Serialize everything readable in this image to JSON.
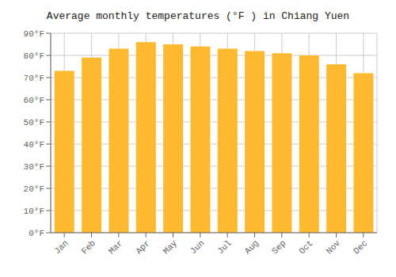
{
  "chart_data": {
    "type": "bar",
    "title": "Average monthly temperatures (°F ) in Chiang Yuen",
    "categories": [
      "Jan",
      "Feb",
      "Mar",
      "Apr",
      "May",
      "Jun",
      "Jul",
      "Aug",
      "Sep",
      "Oct",
      "Nov",
      "Dec"
    ],
    "values": [
      73,
      79,
      83,
      86,
      85,
      84,
      83,
      82,
      81,
      80,
      76,
      72
    ],
    "color": "#FDBA30",
    "ylim": [
      0,
      90
    ],
    "yticks": [
      {
        "value": 0,
        "label": "0°F"
      },
      {
        "value": 10,
        "label": "10°F"
      },
      {
        "value": 20,
        "label": "20°F"
      },
      {
        "value": 30,
        "label": "30°F"
      },
      {
        "value": 40,
        "label": "40°F"
      },
      {
        "value": 50,
        "label": "50°F"
      },
      {
        "value": 60,
        "label": "60°F"
      },
      {
        "value": 70,
        "label": "70°F"
      },
      {
        "value": 80,
        "label": "80°F"
      },
      {
        "value": 90,
        "label": "90°F"
      }
    ],
    "grid": true
  }
}
